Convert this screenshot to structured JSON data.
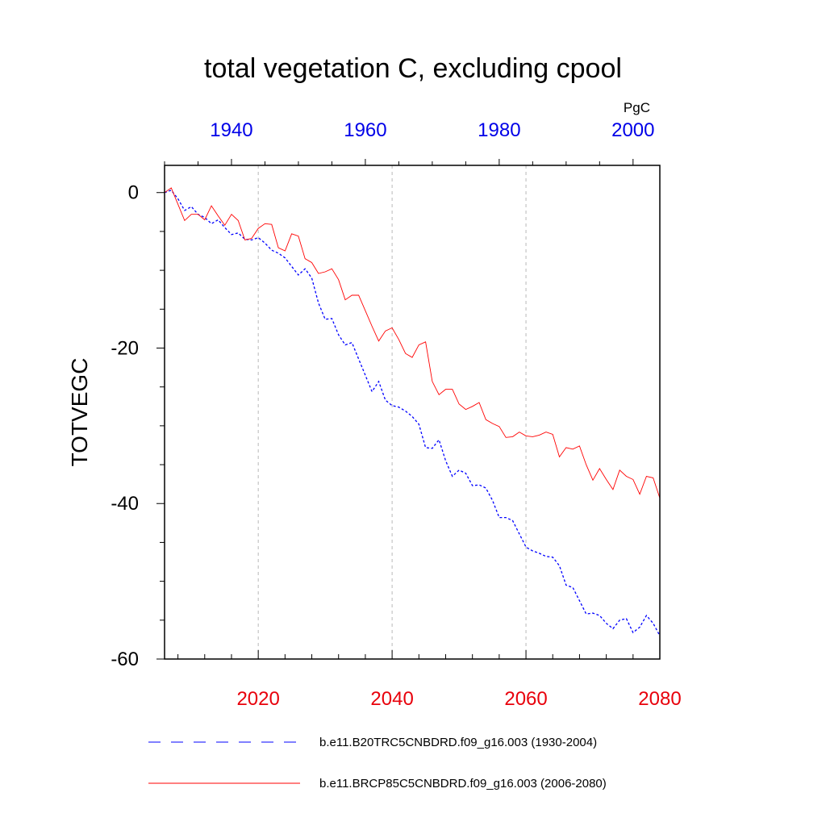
{
  "chart_data": {
    "type": "line",
    "title": "total vegetation C, excluding cpool",
    "units": "PgC",
    "ylabel": "TOTVEGC",
    "ylim": [
      -60,
      3.5
    ],
    "y_ticks": [
      0,
      -20,
      -40,
      -60
    ],
    "grid": "vertical dashed at bottom-axis major ticks",
    "legend_placement": "bottom",
    "bottom_axis": {
      "range": [
        2006,
        2080
      ],
      "ticks": [
        2020,
        2040,
        2060,
        2080
      ],
      "color": "#e8000b"
    },
    "top_axis": {
      "range": [
        1930,
        2004
      ],
      "ticks": [
        1940,
        1960,
        1980,
        2000
      ],
      "color": "#0000e8"
    },
    "series": [
      {
        "name": "b.e11.B20TRC5CNBDRD.f09_g16.003 (1930-2004)",
        "axis": "top",
        "color": "#0000ff",
        "style": "dashed",
        "x_start": 1930,
        "values": [
          0,
          0.3,
          -0.8,
          -2.3,
          -1.8,
          -2.8,
          -3.2,
          -4.0,
          -3.5,
          -4.5,
          -5.4,
          -5.2,
          -6.0,
          -6.1,
          -5.8,
          -6.5,
          -7.4,
          -7.8,
          -8.4,
          -9.5,
          -10.6,
          -9.8,
          -11.0,
          -14.2,
          -16.3,
          -16.2,
          -18.3,
          -19.6,
          -19.3,
          -21.4,
          -23.5,
          -25.6,
          -24.3,
          -26.7,
          -27.4,
          -27.6,
          -28.1,
          -28.8,
          -29.8,
          -32.8,
          -32.9,
          -31.8,
          -34.5,
          -36.5,
          -35.7,
          -36.1,
          -37.7,
          -37.6,
          -38.0,
          -39.6,
          -41.8,
          -41.8,
          -42.2,
          -43.9,
          -45.6,
          -46.1,
          -46.4,
          -46.8,
          -46.9,
          -48.0,
          -50.5,
          -50.8,
          -52.5,
          -54.2,
          -54.1,
          -54.4,
          -55.4,
          -56.1,
          -55.0,
          -54.8,
          -56.6,
          -55.9,
          -54.4,
          -55.4,
          -57.0
        ]
      },
      {
        "name": "b.e11.BRCP85C5CNBDRD.f09_g16.003 (2006-2080)",
        "axis": "bottom",
        "color": "#ff0000",
        "style": "solid",
        "x_start": 2006,
        "values": [
          0,
          0.6,
          -1.5,
          -3.6,
          -2.8,
          -2.8,
          -3.5,
          -1.7,
          -3.0,
          -4.2,
          -2.8,
          -3.6,
          -6.1,
          -5.9,
          -4.6,
          -4.0,
          -4.1,
          -7.1,
          -7.5,
          -5.3,
          -5.6,
          -8.5,
          -9.0,
          -10.4,
          -10.2,
          -9.8,
          -11.2,
          -13.8,
          -13.2,
          -13.2,
          -15.2,
          -17.2,
          -19.1,
          -17.8,
          -17.4,
          -18.9,
          -20.7,
          -21.2,
          -19.6,
          -19.2,
          -24.3,
          -26.0,
          -25.3,
          -25.3,
          -27.2,
          -27.9,
          -27.5,
          -27.0,
          -29.2,
          -29.7,
          -30.1,
          -31.5,
          -31.4,
          -30.8,
          -31.3,
          -31.4,
          -31.2,
          -30.8,
          -31.1,
          -34.0,
          -32.8,
          -33.0,
          -32.6,
          -35.0,
          -37.0,
          -35.5,
          -36.9,
          -38.2,
          -35.7,
          -36.5,
          -36.9,
          -38.8,
          -36.5,
          -36.7,
          -39.3
        ]
      }
    ]
  }
}
